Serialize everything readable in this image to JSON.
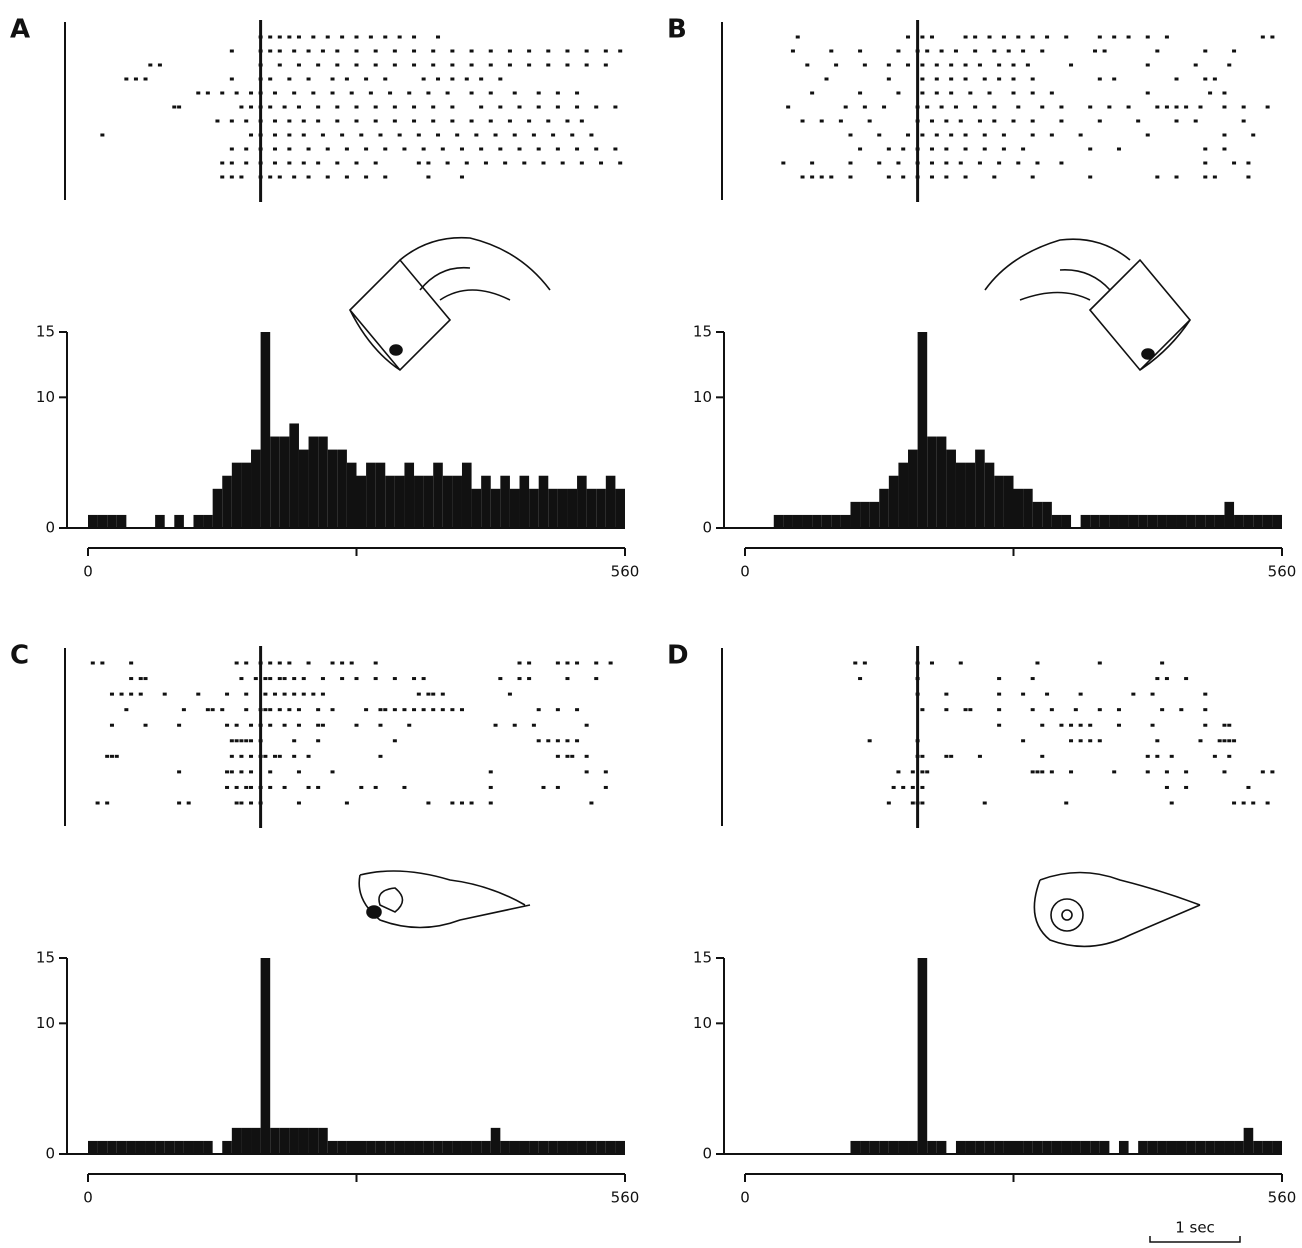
{
  "chart_data": [
    {
      "type": "histogram",
      "label": "A",
      "color": "#111",
      "xlim": [
        0,
        560
      ],
      "xticks": [
        0,
        {
          "value": 280,
          "label": null
        },
        560
      ],
      "ylim": [
        0,
        15
      ],
      "yticks": [
        0,
        10,
        15
      ],
      "event": 180,
      "bins": [
        0,
        10,
        20,
        30,
        40,
        50,
        60,
        70,
        80,
        90,
        100,
        110,
        120,
        130,
        140,
        150,
        160,
        170,
        180,
        190,
        200,
        210,
        220,
        230,
        240,
        250,
        260,
        270,
        280,
        290,
        300,
        310,
        320,
        330,
        340,
        350,
        360,
        370,
        380,
        390,
        400,
        410,
        420,
        430,
        440,
        450,
        460,
        470,
        480,
        490,
        500,
        510,
        520,
        530,
        540,
        550,
        560
      ],
      "values": [
        1,
        1,
        1,
        1,
        0,
        0,
        0,
        1,
        0,
        1,
        0,
        1,
        1,
        3,
        4,
        5,
        5,
        6,
        15,
        7,
        7,
        8,
        6,
        7,
        7,
        6,
        6,
        5,
        4,
        5,
        5,
        4,
        4,
        5,
        4,
        4,
        5,
        4,
        4,
        5,
        3,
        4,
        3,
        4,
        3,
        4,
        3,
        4,
        3,
        3,
        3,
        4,
        3,
        3,
        4,
        3
      ],
      "raster": [
        [
          180,
          190,
          200,
          210,
          220,
          235,
          250,
          265,
          280,
          295,
          310,
          325,
          340,
          365
        ],
        [
          150,
          180,
          190,
          200,
          215,
          230,
          245,
          260,
          280,
          300,
          320,
          340,
          360,
          380,
          400,
          420,
          440,
          460,
          480,
          500,
          520,
          540,
          555
        ],
        [
          65,
          75,
          180,
          200,
          220,
          240,
          260,
          280,
          300,
          320,
          340,
          360,
          380,
          400,
          420,
          440,
          460,
          480,
          500,
          520,
          540
        ],
        [
          40,
          50,
          60,
          150,
          180,
          190,
          210,
          230,
          255,
          270,
          290,
          310,
          350,
          365,
          380,
          395,
          410,
          430
        ],
        [
          115,
          125,
          140,
          155,
          170,
          180,
          195,
          215,
          235,
          255,
          275,
          295,
          315,
          335,
          355,
          375,
          400,
          420,
          445,
          470,
          490,
          510
        ],
        [
          90,
          95,
          160,
          170,
          180,
          190,
          205,
          220,
          240,
          260,
          280,
          300,
          320,
          340,
          360,
          380,
          410,
          430,
          450,
          470,
          490,
          510,
          530,
          550
        ],
        [
          135,
          150,
          165,
          180,
          195,
          210,
          225,
          240,
          260,
          280,
          300,
          320,
          340,
          360,
          380,
          400,
          420,
          440,
          460,
          480,
          500,
          515
        ],
        [
          15,
          170,
          180,
          195,
          210,
          225,
          245,
          265,
          285,
          305,
          325,
          345,
          365,
          385,
          405,
          425,
          445,
          465,
          485,
          505,
          525
        ],
        [
          150,
          165,
          180,
          195,
          210,
          230,
          250,
          270,
          290,
          310,
          330,
          350,
          370,
          390,
          410,
          430,
          450,
          470,
          490,
          510,
          530,
          550
        ],
        [
          140,
          150,
          165,
          180,
          195,
          210,
          225,
          240,
          260,
          280,
          300,
          345,
          355,
          375,
          395,
          415,
          435,
          455,
          475,
          495,
          515,
          535,
          555
        ],
        [
          140,
          150,
          160,
          180,
          190,
          200,
          215,
          230,
          250,
          270,
          290,
          310,
          355,
          390
        ]
      ]
    },
    {
      "type": "histogram",
      "label": "B",
      "color": "#111",
      "xlim": [
        0,
        560
      ],
      "xticks": [
        0,
        {
          "value": 280,
          "label": null
        },
        560
      ],
      "ylim": [
        0,
        15
      ],
      "yticks": [
        0,
        10,
        15
      ],
      "event": 180,
      "bins": [
        0,
        10,
        20,
        30,
        40,
        50,
        60,
        70,
        80,
        90,
        100,
        110,
        120,
        130,
        140,
        150,
        160,
        170,
        180,
        190,
        200,
        210,
        220,
        230,
        240,
        250,
        260,
        270,
        280,
        290,
        300,
        310,
        320,
        330,
        340,
        350,
        360,
        370,
        380,
        390,
        400,
        410,
        420,
        430,
        440,
        450,
        460,
        470,
        480,
        490,
        500,
        510,
        520,
        530,
        540,
        550,
        560
      ],
      "values": [
        0,
        0,
        0,
        1,
        1,
        1,
        1,
        1,
        1,
        1,
        1,
        2,
        2,
        2,
        3,
        4,
        5,
        6,
        15,
        7,
        7,
        6,
        5,
        5,
        6,
        5,
        4,
        4,
        3,
        3,
        2,
        2,
        1,
        1,
        0,
        1,
        1,
        1,
        1,
        1,
        1,
        1,
        1,
        1,
        1,
        1,
        1,
        1,
        1,
        1,
        2,
        1,
        1,
        1,
        1,
        1
      ],
      "raster": [
        [
          55,
          170,
          185,
          195,
          230,
          240,
          255,
          270,
          285,
          300,
          315,
          335,
          370,
          385,
          400,
          420,
          440,
          540,
          550
        ],
        [
          50,
          90,
          120,
          160,
          180,
          190,
          205,
          220,
          240,
          260,
          275,
          290,
          310,
          365,
          375,
          430,
          480,
          510
        ],
        [
          65,
          95,
          125,
          150,
          170,
          185,
          200,
          215,
          230,
          245,
          265,
          280,
          295,
          340,
          420,
          470,
          505
        ],
        [
          85,
          150,
          185,
          200,
          215,
          230,
          250,
          265,
          280,
          300,
          370,
          385,
          450,
          480,
          490
        ],
        [
          70,
          120,
          160,
          185,
          200,
          215,
          235,
          255,
          280,
          300,
          320,
          420,
          485,
          500
        ],
        [
          45,
          105,
          125,
          145,
          180,
          190,
          205,
          220,
          240,
          260,
          285,
          310,
          330,
          360,
          380,
          400,
          430,
          440,
          450,
          460,
          475,
          500,
          520,
          545
        ],
        [
          60,
          80,
          100,
          130,
          180,
          195,
          210,
          225,
          245,
          260,
          280,
          300,
          330,
          370,
          410,
          450,
          470,
          520
        ],
        [
          110,
          140,
          170,
          185,
          200,
          215,
          230,
          250,
          270,
          300,
          320,
          350,
          420,
          500,
          530
        ],
        [
          120,
          150,
          165,
          180,
          195,
          210,
          230,
          250,
          270,
          290,
          360,
          390,
          480,
          500
        ],
        [
          40,
          70,
          110,
          140,
          160,
          180,
          195,
          210,
          225,
          245,
          265,
          285,
          305,
          330,
          480,
          510,
          525
        ],
        [
          60,
          70,
          80,
          90,
          110,
          150,
          165,
          180,
          195,
          210,
          230,
          260,
          300,
          360,
          430,
          450,
          480,
          490,
          525
        ]
      ]
    },
    {
      "type": "histogram",
      "label": "C",
      "color": "#111",
      "xlim": [
        0,
        560
      ],
      "xticks": [
        0,
        {
          "value": 280,
          "label": null
        },
        560
      ],
      "ylim": [
        0,
        15
      ],
      "yticks": [
        0,
        10,
        15
      ],
      "event": 180,
      "bins": [
        0,
        10,
        20,
        30,
        40,
        50,
        60,
        70,
        80,
        90,
        100,
        110,
        120,
        130,
        140,
        150,
        160,
        170,
        180,
        190,
        200,
        210,
        220,
        230,
        240,
        250,
        260,
        270,
        280,
        290,
        300,
        310,
        320,
        330,
        340,
        350,
        360,
        370,
        380,
        390,
        400,
        410,
        420,
        430,
        440,
        450,
        460,
        470,
        480,
        490,
        500,
        510,
        520,
        530,
        540,
        550,
        560
      ],
      "values": [
        1,
        1,
        1,
        1,
        1,
        1,
        1,
        1,
        1,
        1,
        1,
        1,
        1,
        0,
        1,
        2,
        2,
        2,
        15,
        2,
        2,
        2,
        2,
        2,
        2,
        1,
        1,
        1,
        1,
        1,
        1,
        1,
        1,
        1,
        1,
        1,
        1,
        1,
        1,
        1,
        1,
        1,
        2,
        1,
        1,
        1,
        1,
        1,
        1,
        1,
        1,
        1,
        1,
        1,
        1,
        1
      ],
      "raster": [
        [
          5,
          15,
          45,
          155,
          165,
          180,
          190,
          200,
          210,
          230,
          255,
          265,
          275,
          300,
          450,
          460,
          490,
          500,
          510,
          530,
          545
        ],
        [
          45,
          55,
          60,
          160,
          175,
          185,
          190,
          200,
          205,
          215,
          225,
          245,
          265,
          280,
          300,
          320,
          340,
          350,
          430,
          450,
          460,
          500,
          530
        ],
        [
          25,
          35,
          45,
          55,
          80,
          115,
          145,
          165,
          185,
          195,
          205,
          215,
          225,
          235,
          245,
          345,
          355,
          360,
          370,
          440
        ],
        [
          40,
          100,
          125,
          130,
          140,
          165,
          180,
          185,
          190,
          200,
          210,
          220,
          240,
          255,
          290,
          305,
          310,
          320,
          330,
          340,
          350,
          360,
          370,
          380,
          390,
          470,
          490,
          510
        ],
        [
          25,
          60,
          95,
          145,
          155,
          170,
          180,
          190,
          205,
          220,
          240,
          245,
          280,
          305,
          335,
          425,
          445,
          465,
          520
        ],
        [
          150,
          155,
          160,
          165,
          170,
          180,
          215,
          240,
          320,
          470,
          480,
          490,
          500,
          510
        ],
        [
          20,
          25,
          30,
          150,
          160,
          170,
          180,
          185,
          195,
          200,
          215,
          230,
          305,
          490,
          500,
          505,
          520
        ],
        [
          95,
          145,
          150,
          160,
          170,
          190,
          220,
          255,
          420,
          520,
          540
        ],
        [
          145,
          155,
          165,
          170,
          180,
          190,
          205,
          230,
          240,
          285,
          300,
          330,
          420,
          475,
          490,
          540
        ],
        [
          10,
          20,
          95,
          105,
          155,
          160,
          170,
          180,
          220,
          270,
          355,
          380,
          390,
          400,
          420,
          525
        ]
      ]
    },
    {
      "type": "histogram",
      "label": "D",
      "color": "#111",
      "xlim": [
        0,
        560
      ],
      "xticks": [
        0,
        {
          "value": 280,
          "label": null
        },
        560
      ],
      "ylim": [
        0,
        15
      ],
      "yticks": [
        0,
        10,
        15
      ],
      "event": 180,
      "bins": [
        0,
        10,
        20,
        30,
        40,
        50,
        60,
        70,
        80,
        90,
        100,
        110,
        120,
        130,
        140,
        150,
        160,
        170,
        180,
        190,
        200,
        210,
        220,
        230,
        240,
        250,
        260,
        270,
        280,
        290,
        300,
        310,
        320,
        330,
        340,
        350,
        360,
        370,
        380,
        390,
        400,
        410,
        420,
        430,
        440,
        450,
        460,
        470,
        480,
        490,
        500,
        510,
        520,
        530,
        540,
        550,
        560
      ],
      "values": [
        0,
        0,
        0,
        0,
        0,
        0,
        0,
        0,
        0,
        0,
        0,
        1,
        1,
        1,
        1,
        1,
        1,
        1,
        15,
        1,
        1,
        0,
        1,
        1,
        1,
        1,
        1,
        1,
        1,
        1,
        1,
        1,
        1,
        1,
        1,
        1,
        1,
        1,
        0,
        1,
        0,
        1,
        1,
        1,
        1,
        1,
        1,
        1,
        1,
        1,
        1,
        1,
        2,
        1,
        1,
        1
      ],
      "raster": [
        [
          115,
          125,
          180,
          195,
          225,
          305,
          370,
          435
        ],
        [
          120,
          180,
          265,
          300,
          430,
          440,
          460
        ],
        [
          180,
          210,
          265,
          290,
          315,
          350,
          405,
          425,
          480
        ],
        [
          185,
          210,
          230,
          235,
          265,
          300,
          320,
          345,
          370,
          390,
          435,
          455,
          480
        ],
        [
          265,
          310,
          330,
          340,
          350,
          360,
          390,
          425,
          480,
          500,
          505
        ],
        [
          130,
          180,
          290,
          340,
          350,
          360,
          370,
          430,
          475,
          495,
          500,
          505,
          510
        ],
        [
          180,
          185,
          210,
          215,
          245,
          310,
          420,
          430,
          445,
          490,
          505
        ],
        [
          160,
          175,
          185,
          190,
          300,
          305,
          310,
          320,
          340,
          385,
          420,
          440,
          460,
          500,
          540,
          550
        ],
        [
          155,
          165,
          175,
          185,
          440,
          460,
          525
        ],
        [
          150,
          175,
          180,
          185,
          250,
          335,
          445,
          510,
          520,
          530,
          545
        ]
      ]
    }
  ],
  "scale_bar": {
    "label": "1 sec"
  }
}
